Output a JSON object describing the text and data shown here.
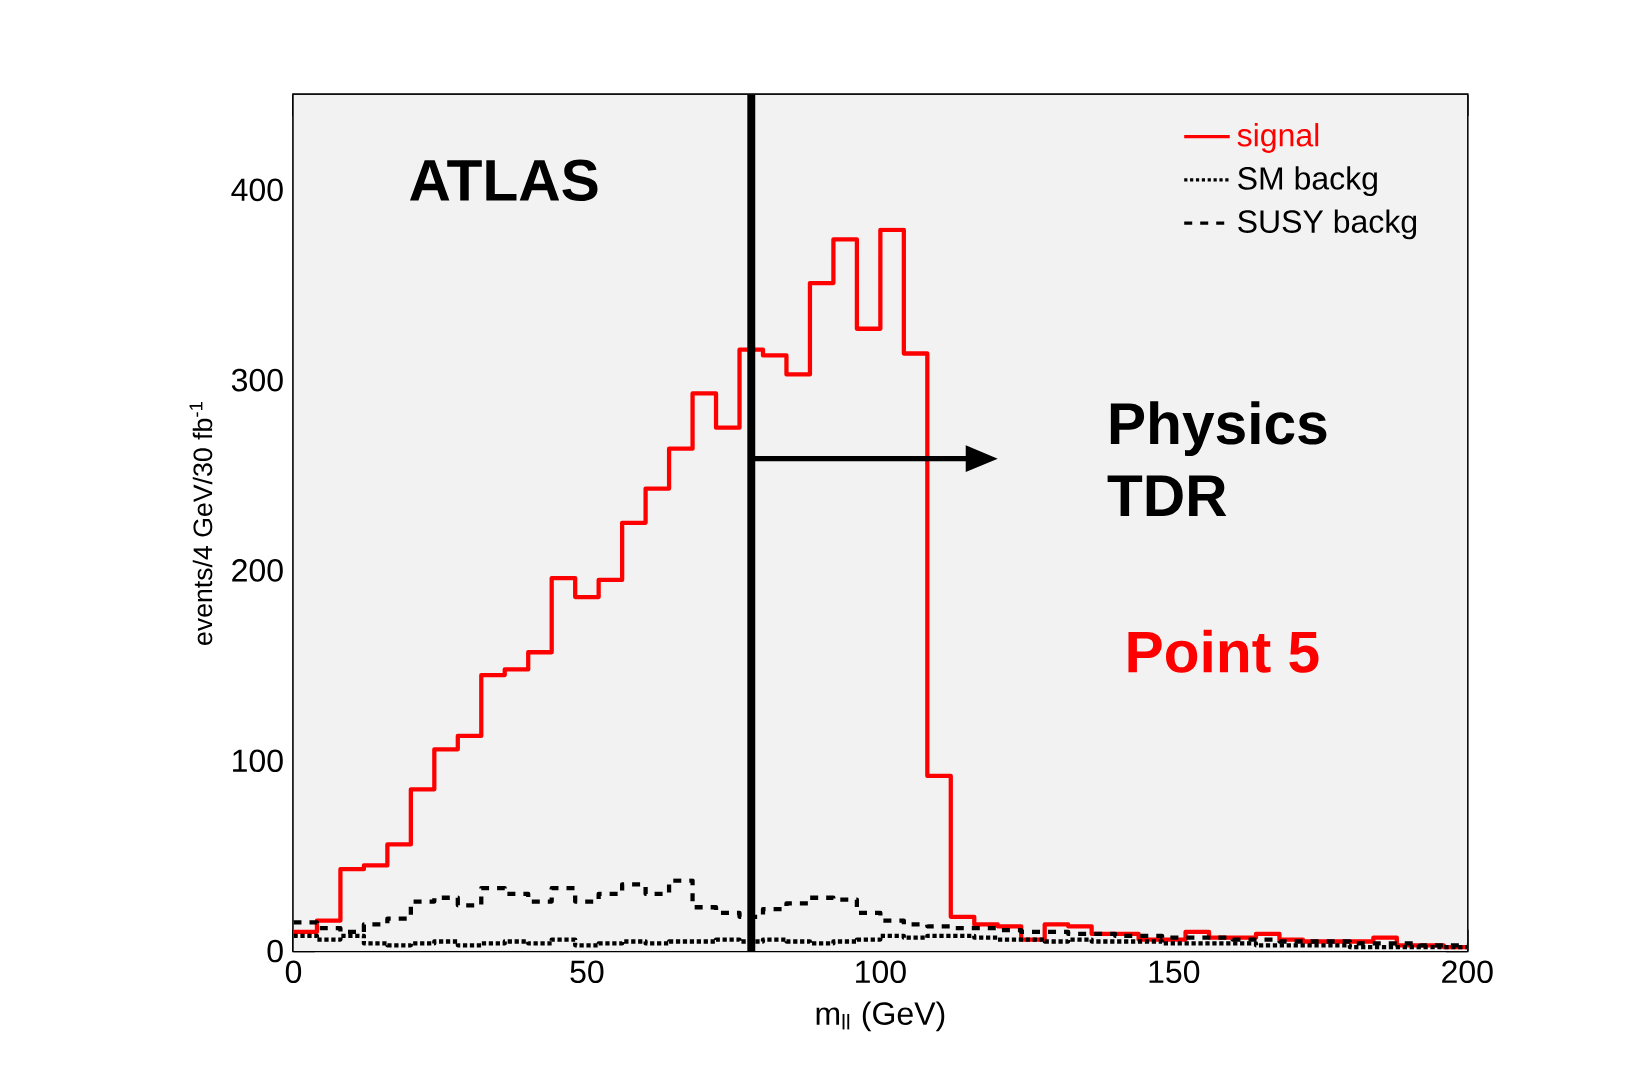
{
  "chart_data": {
    "type": "histogram",
    "xlabel": "m$_{ll}$ (GeV)",
    "ylabel": "events/4 GeV/30 fb$^{-1}$",
    "bins": [
      0,
      4,
      8,
      12,
      16,
      20,
      24,
      28,
      32,
      36,
      40,
      44,
      48,
      52,
      56,
      60,
      64,
      68,
      72,
      76,
      80,
      84,
      88,
      92,
      96,
      100,
      104,
      108,
      112,
      116,
      120,
      124,
      128,
      132,
      136,
      140,
      144,
      148,
      152,
      156,
      160,
      164,
      168,
      172,
      176,
      180,
      184,
      188,
      192,
      196,
      200
    ],
    "series": [
      {
        "name": "signal",
        "color": "#ff0000",
        "line_style": "solid",
        "values": [
          10,
          16,
          43,
          45,
          56,
          85,
          106,
          113,
          145,
          148,
          157,
          196,
          186,
          195,
          225,
          243,
          264,
          293,
          275,
          316,
          313,
          303,
          351,
          374,
          327,
          379,
          314,
          92,
          18,
          14,
          13,
          6,
          14,
          13,
          9,
          9,
          6,
          6,
          10,
          7,
          7,
          9,
          6,
          5,
          5,
          5,
          7,
          3,
          3,
          2
        ]
      },
      {
        "name": "SM backg",
        "color": "#000000",
        "line_style": "dotted",
        "values": [
          8,
          6,
          8,
          4,
          3,
          4,
          5,
          3,
          4,
          5,
          4,
          6,
          3,
          4,
          5,
          4,
          5,
          5,
          6,
          5,
          6,
          5,
          4,
          5,
          6,
          8,
          7,
          8,
          8,
          7,
          6,
          6,
          5,
          6,
          5,
          5,
          5,
          4,
          4,
          4,
          4,
          3,
          3,
          3,
          3,
          2,
          2,
          2,
          2,
          2
        ]
      },
      {
        "name": "SUSY backg",
        "color": "#000000",
        "line_style": "dashed",
        "values": [
          15,
          12,
          10,
          14,
          17,
          26,
          28,
          24,
          33,
          30,
          26,
          33,
          26,
          30,
          35,
          30,
          37,
          23,
          20,
          18,
          22,
          25,
          28,
          27,
          20,
          16,
          14,
          13,
          12,
          12,
          11,
          10,
          10,
          9,
          9,
          8,
          8,
          7,
          7,
          7,
          6,
          6,
          5,
          5,
          5,
          4,
          4,
          4,
          3,
          3
        ]
      }
    ],
    "xlim": [
      0,
      200
    ],
    "ylim": [
      0,
      450
    ],
    "xticks": [
      0,
      50,
      100,
      150,
      200
    ],
    "yticks": [
      0,
      100,
      200,
      300,
      400
    ],
    "ref_lines": [
      {
        "axis": "x",
        "value": 78,
        "color": "#000000"
      }
    ],
    "annotations": [
      "ATLAS",
      "Physics TDR",
      "Point 5"
    ],
    "legend": "top right"
  }
}
